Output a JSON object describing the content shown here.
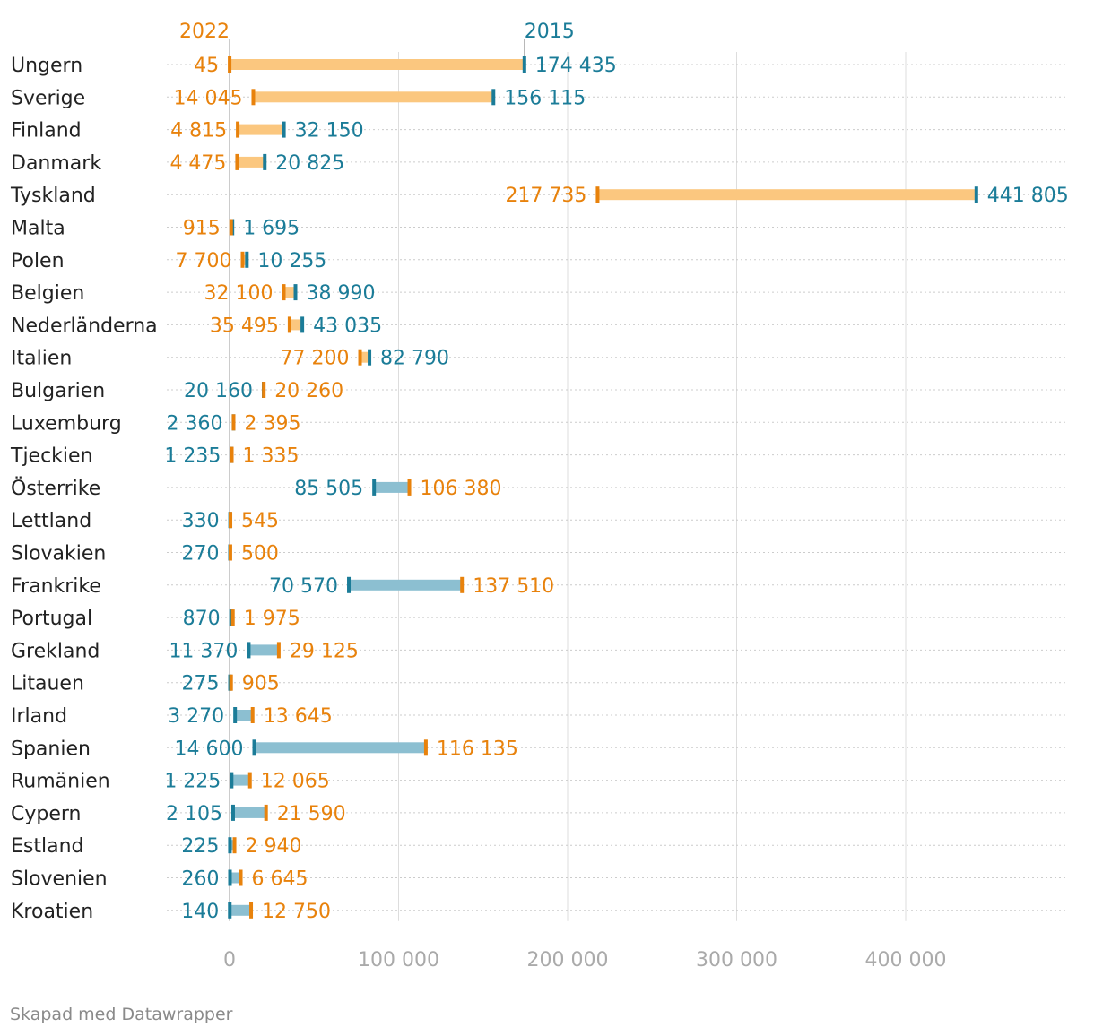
{
  "colors": {
    "year2015": "#1b7c98",
    "year2022": "#e8820c",
    "bar_up": "#fbc77f",
    "bar_down": "#8cbfd1",
    "grid": "#dddddd",
    "row_line": "#cccccc",
    "axis": "#999999"
  },
  "chart_data": {
    "type": "range-dot",
    "series": [
      {
        "name": "2022",
        "label": "2022"
      },
      {
        "name": "2015",
        "label": "2015"
      }
    ],
    "xlim": [
      0,
      460000
    ],
    "xticks": [
      0,
      100000,
      200000,
      300000,
      400000
    ],
    "xtick_labels": [
      "0",
      "100 000",
      "200 000",
      "300 000",
      "400 000"
    ],
    "rows": [
      {
        "country": "Ungern",
        "v2015": 174435,
        "v2022": 45,
        "l2015": "174 435",
        "l2022": "45"
      },
      {
        "country": "Sverige",
        "v2015": 156115,
        "v2022": 14045,
        "l2015": "156 115",
        "l2022": "14 045"
      },
      {
        "country": "Finland",
        "v2015": 32150,
        "v2022": 4815,
        "l2015": "32 150",
        "l2022": "4 815"
      },
      {
        "country": "Danmark",
        "v2015": 20825,
        "v2022": 4475,
        "l2015": "20 825",
        "l2022": "4 475"
      },
      {
        "country": "Tyskland",
        "v2015": 441805,
        "v2022": 217735,
        "l2015": "441 805",
        "l2022": "217 735"
      },
      {
        "country": "Malta",
        "v2015": 1695,
        "v2022": 915,
        "l2015": "1 695",
        "l2022": "915"
      },
      {
        "country": "Polen",
        "v2015": 10255,
        "v2022": 7700,
        "l2015": "10 255",
        "l2022": "7 700"
      },
      {
        "country": "Belgien",
        "v2015": 38990,
        "v2022": 32100,
        "l2015": "38 990",
        "l2022": "32 100"
      },
      {
        "country": "Nederländerna",
        "v2015": 43035,
        "v2022": 35495,
        "l2015": "43 035",
        "l2022": "35 495"
      },
      {
        "country": "Italien",
        "v2015": 82790,
        "v2022": 77200,
        "l2015": "82 790",
        "l2022": "77 200"
      },
      {
        "country": "Bulgarien",
        "v2015": 20160,
        "v2022": 20260,
        "l2015": "20 160",
        "l2022": "20 260"
      },
      {
        "country": "Luxemburg",
        "v2015": 2360,
        "v2022": 2395,
        "l2015": "2 360",
        "l2022": "2 395"
      },
      {
        "country": "Tjeckien",
        "v2015": 1235,
        "v2022": 1335,
        "l2015": "1 235",
        "l2022": "1 335"
      },
      {
        "country": "Österrike",
        "v2015": 85505,
        "v2022": 106380,
        "l2015": "85 505",
        "l2022": "106 380"
      },
      {
        "country": "Lettland",
        "v2015": 330,
        "v2022": 545,
        "l2015": "330",
        "l2022": "545"
      },
      {
        "country": "Slovakien",
        "v2015": 270,
        "v2022": 500,
        "l2015": "270",
        "l2022": "500"
      },
      {
        "country": "Frankrike",
        "v2015": 70570,
        "v2022": 137510,
        "l2015": "70 570",
        "l2022": "137 510"
      },
      {
        "country": "Portugal",
        "v2015": 870,
        "v2022": 1975,
        "l2015": "870",
        "l2022": "1 975"
      },
      {
        "country": "Grekland",
        "v2015": 11370,
        "v2022": 29125,
        "l2015": "11 370",
        "l2022": "29 125"
      },
      {
        "country": "Litauen",
        "v2015": 275,
        "v2022": 905,
        "l2015": "275",
        "l2022": "905"
      },
      {
        "country": "Irland",
        "v2015": 3270,
        "v2022": 13645,
        "l2015": "3 270",
        "l2022": "13 645"
      },
      {
        "country": "Spanien",
        "v2015": 14600,
        "v2022": 116135,
        "l2015": "14 600",
        "l2022": "116 135"
      },
      {
        "country": "Rumänien",
        "v2015": 1225,
        "v2022": 12065,
        "l2015": "1 225",
        "l2022": "12 065"
      },
      {
        "country": "Cypern",
        "v2015": 2105,
        "v2022": 21590,
        "l2015": "2 105",
        "l2022": "21 590"
      },
      {
        "country": "Estland",
        "v2015": 225,
        "v2022": 2940,
        "l2015": "225",
        "l2022": "2 940"
      },
      {
        "country": "Slovenien",
        "v2015": 260,
        "v2022": 6645,
        "l2015": "260",
        "l2022": "6 645"
      },
      {
        "country": "Kroatien",
        "v2015": 140,
        "v2022": 12750,
        "l2015": "140",
        "l2022": "12 750"
      }
    ]
  },
  "footer": {
    "credit": "Skapad med Datawrapper"
  }
}
